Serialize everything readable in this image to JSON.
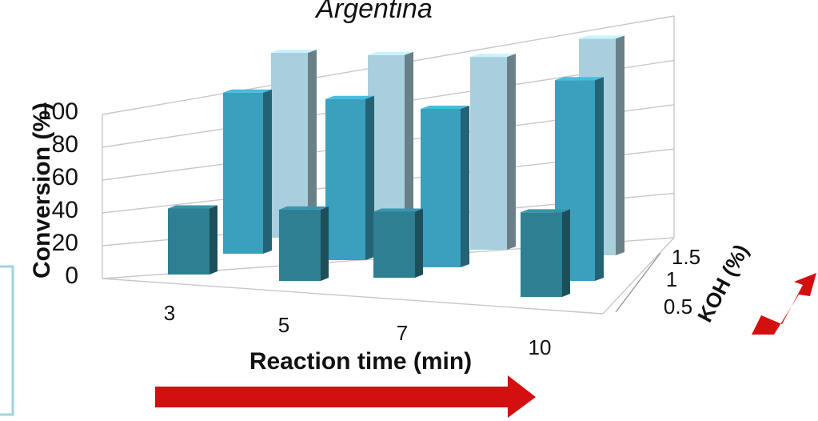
{
  "chart_data": {
    "type": "bar",
    "subtype": "3d-clustered-depth",
    "title": "Argentina",
    "xlabel": "Reaction time (min)",
    "ylabel": "Conversion (%)",
    "zlabel": "KOH (%)",
    "categories": [
      "3",
      "5",
      "7",
      "10"
    ],
    "depth_categories": [
      "0.5",
      "1",
      "1.5"
    ],
    "yticks": [
      "0",
      "20",
      "40",
      "60",
      "80",
      "100"
    ],
    "ylim": [
      0,
      100
    ],
    "grid": true,
    "legend": "none",
    "series": [
      {
        "depth": "0.5",
        "values": [
          25,
          27,
          25,
          32
        ],
        "color": "#2f7f93"
      },
      {
        "depth": "1",
        "values": [
          61,
          61,
          60,
          76
        ],
        "color": "#3aa0bd"
      },
      {
        "depth": "1.5",
        "values": [
          70,
          71,
          73,
          82
        ],
        "color": "#a9cfdd"
      }
    ],
    "decorations": {
      "arrow_color": "#d40f0f",
      "panel_border_color": "#9fd3dd"
    }
  }
}
